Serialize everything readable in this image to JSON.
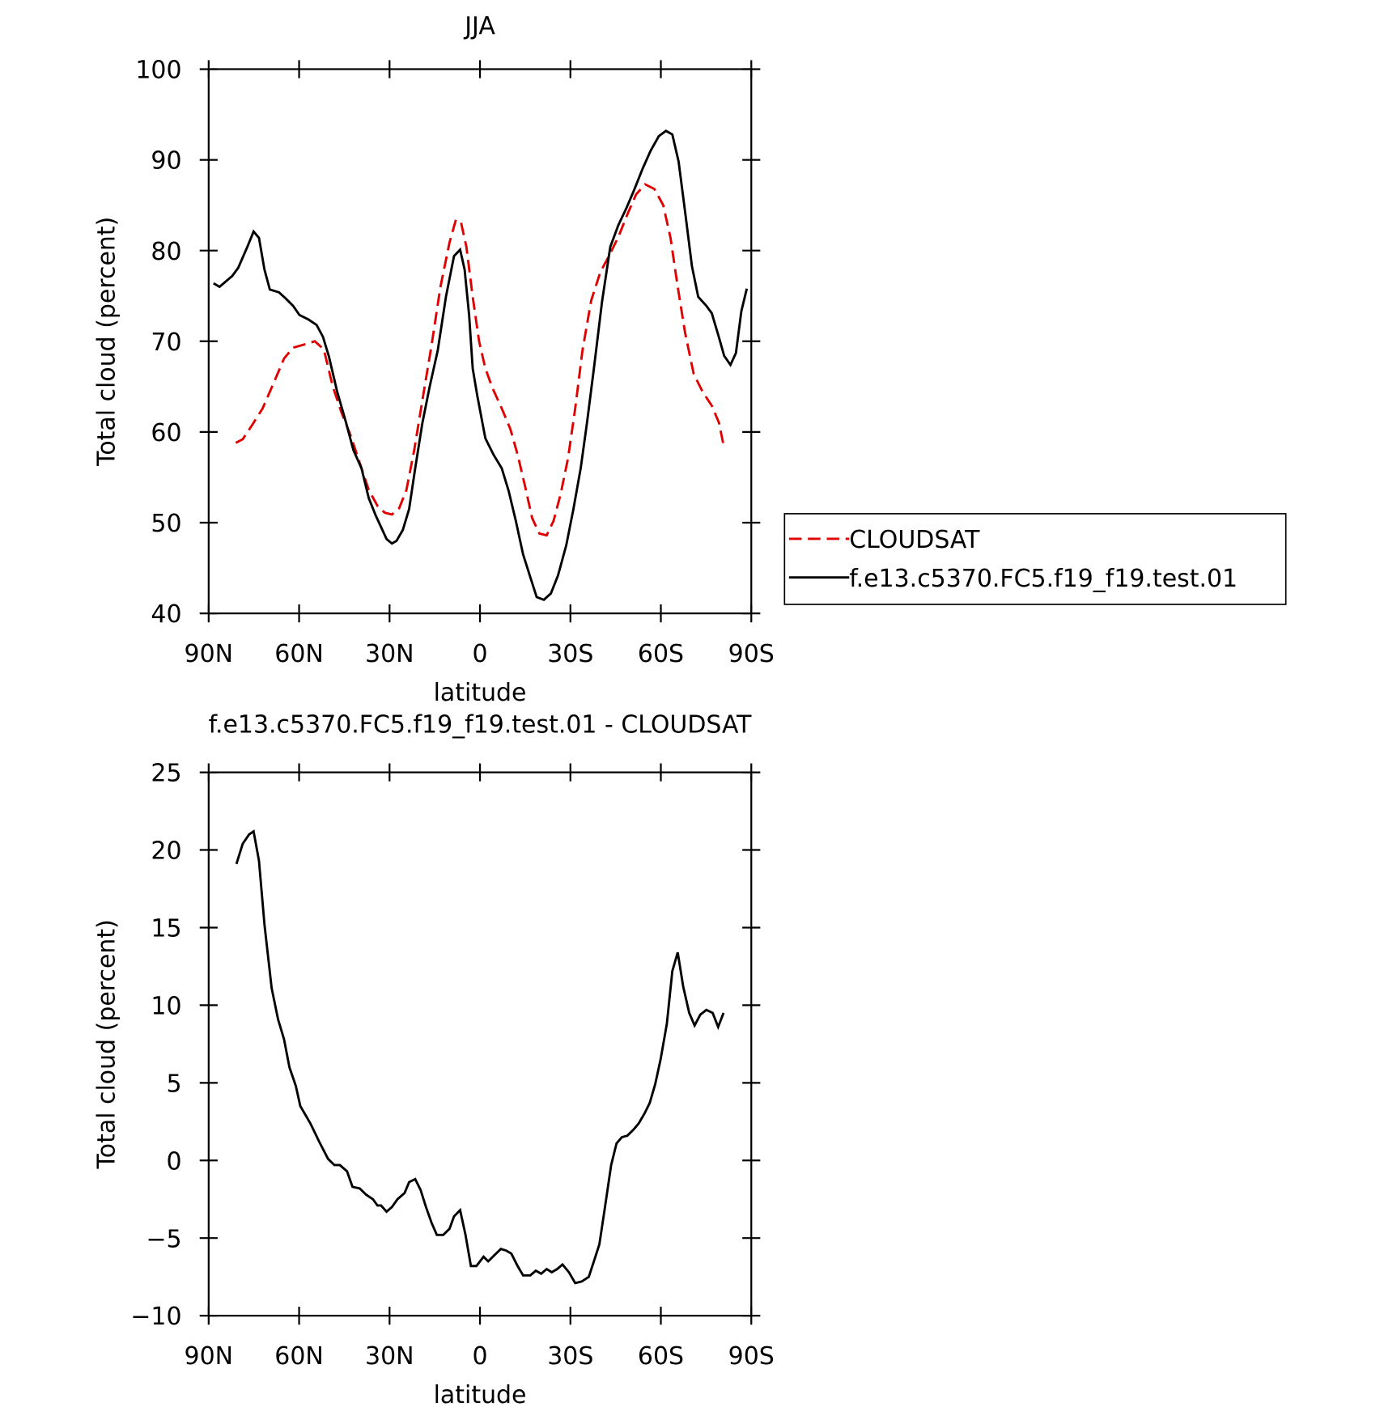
{
  "chart_data": [
    {
      "type": "line",
      "title": "JJA",
      "xlabel": "latitude",
      "ylabel": "Total cloud (percent)",
      "xlim": [
        90,
        -90
      ],
      "xticks": [
        {
          "value": 90,
          "label": "90N"
        },
        {
          "value": 60,
          "label": "60N"
        },
        {
          "value": 30,
          "label": "30N"
        },
        0,
        {
          "value": -30,
          "label": "30S"
        },
        {
          "value": -60,
          "label": "60S"
        },
        {
          "value": -90,
          "label": "90S"
        }
      ],
      "ylim": [
        40,
        100
      ],
      "yticks": [
        40,
        50,
        60,
        70,
        80,
        90,
        100
      ],
      "legend": "outside-right",
      "series": [
        {
          "name": "CLOUDSAT",
          "color": "#e00000",
          "line_style": "dashed",
          "x": [
            81.0,
            78.7,
            75.7,
            72.1,
            68.2,
            65.0,
            62.0,
            58.7,
            54.8,
            51.8,
            48.9,
            45.9,
            42.9,
            39.9,
            36.9,
            33.9,
            31.6,
            29.2,
            26.8,
            24.4,
            21.8,
            19.1,
            16.1,
            13.1,
            10.1,
            8.0,
            6.3,
            4.5,
            2.4,
            0.3,
            -1.8,
            -4.2,
            -7.2,
            -10.1,
            -12.5,
            -14.9,
            -17.3,
            -19.7,
            -22.1,
            -24.4,
            -26.8,
            -29.2,
            -31.6,
            -34.0,
            -36.9,
            -39.9,
            -42.9,
            -45.9,
            -48.9,
            -51.8,
            -54.8,
            -57.8,
            -60.8,
            -63.2,
            -65.6,
            -68.0,
            -70.9,
            -73.9,
            -76.9,
            -79.3,
            -81.0
          ],
          "values": [
            58.8,
            59.2,
            60.7,
            62.6,
            65.6,
            68.1,
            69.3,
            69.6,
            70.0,
            69.1,
            65.1,
            62.1,
            59.6,
            56.6,
            53.6,
            51.8,
            51.1,
            50.9,
            51.6,
            53.6,
            58.0,
            63.5,
            69.5,
            76.0,
            80.9,
            83.4,
            83.1,
            80.4,
            74.9,
            70.0,
            67.0,
            64.8,
            62.6,
            60.3,
            57.5,
            54.1,
            50.5,
            48.8,
            48.6,
            50.2,
            53.2,
            57.1,
            62.6,
            69.0,
            74.5,
            77.6,
            79.5,
            81.5,
            84.0,
            86.2,
            87.3,
            86.8,
            85.0,
            81.4,
            76.0,
            71.0,
            66.4,
            64.4,
            62.9,
            61.0,
            58.2
          ]
        },
        {
          "name": "f.e13.c5370.FC5.f19_f19.test.01",
          "color": "#000000",
          "line_style": "solid",
          "x": [
            88.4,
            86.4,
            82.2,
            80.2,
            77.2,
            75.1,
            73.3,
            71.5,
            69.7,
            66.7,
            64.4,
            62.0,
            59.9,
            56.9,
            54.2,
            52.1,
            50.1,
            47.4,
            44.4,
            42.0,
            39.3,
            36.9,
            34.6,
            32.5,
            31.0,
            29.2,
            27.7,
            25.6,
            23.5,
            21.5,
            19.1,
            16.7,
            14.0,
            11.3,
            8.6,
            6.6,
            5.1,
            3.6,
            2.4,
            0.9,
            -1.8,
            -4.5,
            -7.2,
            -9.5,
            -11.9,
            -14.3,
            -16.7,
            -18.8,
            -21.2,
            -23.5,
            -25.9,
            -28.6,
            -31.0,
            -33.4,
            -35.5,
            -37.8,
            -40.5,
            -43.2,
            -45.9,
            -48.6,
            -51.3,
            -53.9,
            -56.6,
            -59.3,
            -61.7,
            -63.8,
            -65.9,
            -68.2,
            -70.3,
            -72.4,
            -75.1,
            -76.9,
            -79.3,
            -81.0,
            -83.1,
            -84.9,
            -86.7,
            -88.5
          ],
          "values": [
            76.4,
            76.0,
            77.2,
            78.1,
            80.4,
            82.1,
            81.4,
            77.9,
            75.7,
            75.4,
            74.7,
            73.9,
            72.9,
            72.4,
            71.8,
            70.5,
            68.3,
            64.5,
            61.0,
            58.0,
            56.0,
            52.7,
            50.8,
            49.3,
            48.2,
            47.7,
            48.0,
            49.2,
            51.5,
            56.0,
            61.0,
            65.0,
            69.0,
            74.9,
            79.4,
            80.1,
            77.9,
            72.9,
            67.0,
            64.0,
            59.3,
            57.5,
            56.0,
            53.5,
            50.2,
            46.5,
            44.0,
            41.8,
            41.5,
            42.2,
            44.2,
            47.5,
            51.5,
            56.0,
            61.0,
            67.0,
            74.4,
            80.4,
            82.8,
            84.7,
            86.8,
            89.0,
            91.0,
            92.6,
            93.2,
            92.8,
            89.8,
            83.9,
            78.3,
            74.9,
            73.9,
            73.1,
            70.4,
            68.4,
            67.4,
            68.7,
            73.3,
            75.8
          ]
        }
      ]
    },
    {
      "type": "line",
      "title": "f.e13.c5370.FC5.f19_f19.test.01 - CLOUDSAT",
      "xlabel": "latitude",
      "ylabel": "Total cloud (percent)",
      "xlim": [
        90,
        -90
      ],
      "xticks": [
        {
          "value": 90,
          "label": "90N"
        },
        {
          "value": 60,
          "label": "60N"
        },
        {
          "value": 30,
          "label": "30N"
        },
        0,
        {
          "value": -30,
          "label": "30S"
        },
        {
          "value": -60,
          "label": "60S"
        },
        {
          "value": -90,
          "label": "90S"
        }
      ],
      "ylim": [
        -10,
        25
      ],
      "yticks": [
        {
          "value": -10,
          "label": "−10"
        },
        {
          "value": -5,
          "label": "−5"
        },
        0,
        5,
        10,
        15,
        20,
        25
      ],
      "color": "#000000",
      "x": [
        80.8,
        78.7,
        76.6,
        75.1,
        73.3,
        71.5,
        69.1,
        67.0,
        65.0,
        63.2,
        61.1,
        59.6,
        56.3,
        53.3,
        50.4,
        48.3,
        46.5,
        44.1,
        42.3,
        39.9,
        37.8,
        35.5,
        34.0,
        32.8,
        31.0,
        29.2,
        27.4,
        25.0,
        23.5,
        21.5,
        19.7,
        17.9,
        16.1,
        14.3,
        12.2,
        10.1,
        8.6,
        6.6,
        4.8,
        3.0,
        1.2,
        -1.2,
        -2.7,
        -4.8,
        -6.9,
        -8.6,
        -10.4,
        -12.5,
        -14.3,
        -16.7,
        -18.5,
        -20.3,
        -22.1,
        -23.8,
        -25.6,
        -27.4,
        -29.5,
        -31.6,
        -33.7,
        -36.1,
        -37.8,
        -39.6,
        -41.4,
        -43.5,
        -45.3,
        -47.1,
        -48.9,
        -51.0,
        -52.7,
        -54.5,
        -56.3,
        -58.1,
        -59.9,
        -62.0,
        -63.8,
        -65.6,
        -67.4,
        -69.4,
        -71.2,
        -73.1,
        -75.1,
        -77.2,
        -79.0,
        -80.8
      ],
      "values": [
        19.1,
        20.4,
        21.0,
        21.2,
        19.3,
        15.2,
        11.1,
        9.1,
        7.8,
        6.0,
        4.8,
        3.5,
        2.4,
        1.2,
        0.1,
        -0.3,
        -0.3,
        -0.7,
        -1.7,
        -1.8,
        -2.2,
        -2.5,
        -2.9,
        -2.9,
        -3.3,
        -3.0,
        -2.5,
        -2.1,
        -1.4,
        -1.2,
        -1.9,
        -3.0,
        -4.0,
        -4.8,
        -4.8,
        -4.4,
        -3.6,
        -3.2,
        -4.8,
        -6.8,
        -6.8,
        -6.2,
        -6.5,
        -6.1,
        -5.7,
        -5.8,
        -6.0,
        -6.8,
        -7.4,
        -7.4,
        -7.1,
        -7.3,
        -7.0,
        -7.2,
        -7.0,
        -6.7,
        -7.2,
        -7.9,
        -7.8,
        -7.5,
        -6.5,
        -5.4,
        -3.1,
        -0.3,
        1.1,
        1.5,
        1.6,
        2.0,
        2.4,
        3.0,
        3.7,
        4.9,
        6.5,
        8.8,
        12.2,
        13.4,
        11.2,
        9.5,
        8.7,
        9.4,
        9.7,
        9.5,
        8.6,
        9.5
      ]
    }
  ]
}
